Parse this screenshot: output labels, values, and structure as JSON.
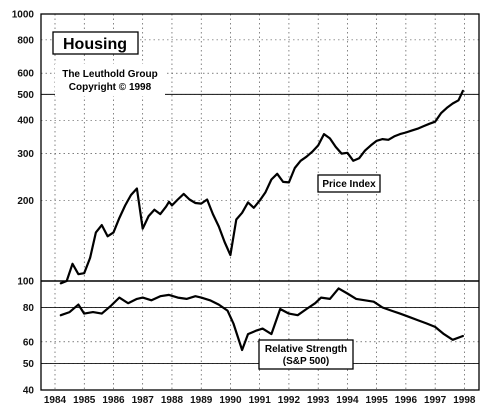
{
  "chart_data": {
    "type": "line",
    "title": "Housing",
    "credit": [
      "The Leuthold Group",
      "Copyright © 1998"
    ],
    "x_ticks": [
      "1984",
      "1985",
      "1986",
      "1987",
      "1988",
      "1989",
      "1990",
      "1991",
      "1992",
      "1993",
      "1994",
      "1995",
      "1996",
      "1997",
      "1998"
    ],
    "grid": true,
    "panels": [
      {
        "name": "price",
        "scale": "log",
        "ylim": [
          100,
          1000
        ],
        "y_ticks": [
          100,
          200,
          300,
          400,
          500,
          600,
          800,
          1000
        ],
        "reference_lines": [
          500
        ],
        "label": "Price Index",
        "series": [
          {
            "x": [
              1984.2,
              1984.4,
              1984.6,
              1984.8,
              1985.0,
              1985.2,
              1985.4,
              1985.6,
              1985.8,
              1986.0,
              1986.2,
              1986.4,
              1986.6,
              1986.8,
              1987.0,
              1987.2,
              1987.4,
              1987.6,
              1987.8,
              1987.9,
              1988.0,
              1988.2,
              1988.4,
              1988.6,
              1988.8,
              1989.0,
              1989.2,
              1989.4,
              1989.6,
              1989.8,
              1990.0,
              1990.2,
              1990.4,
              1990.6,
              1990.8,
              1991.0,
              1991.2,
              1991.4,
              1991.6,
              1991.8,
              1992.0,
              1992.2,
              1992.4,
              1992.6,
              1992.8,
              1993.0,
              1993.2,
              1993.4,
              1993.6,
              1993.8,
              1994.0,
              1994.2,
              1994.4,
              1994.6,
              1994.8,
              1995.0,
              1995.2,
              1995.4,
              1995.6,
              1995.8,
              1996.0,
              1996.2,
              1996.4,
              1996.6,
              1996.8,
              1997.0,
              1997.2,
              1997.4,
              1997.6,
              1997.8,
              1997.95
            ],
            "y": [
              98,
              100,
              116,
              106,
              107,
              122,
              152,
              162,
              147,
              152,
              172,
              192,
              210,
              222,
              157,
              175,
              185,
              178,
              190,
              198,
              192,
              202,
              212,
              202,
              196,
              195,
              202,
              178,
              160,
              140,
              125,
              170,
              180,
              197,
              188,
              200,
              215,
              240,
              252,
              235,
              234,
              265,
              282,
              292,
              305,
              322,
              355,
              342,
              318,
              300,
              302,
              282,
              288,
              308,
              322,
              335,
              340,
              338,
              348,
              355,
              360,
              366,
              372,
              380,
              388,
              395,
              425,
              445,
              462,
              475,
              515
            ]
          }
        ]
      },
      {
        "name": "relative",
        "scale": "log",
        "ylim": [
          40,
          100
        ],
        "y_ticks": [
          40,
          50,
          60,
          80,
          100
        ],
        "reference_lines": [
          50,
          80
        ],
        "label": [
          "Relative Strength",
          "(S&P 500)"
        ],
        "series": [
          {
            "x": [
              1984.2,
              1984.5,
              1984.8,
              1985.0,
              1985.3,
              1985.6,
              1985.9,
              1986.2,
              1986.5,
              1986.8,
              1987.0,
              1987.3,
              1987.6,
              1987.9,
              1988.2,
              1988.5,
              1988.8,
              1989.0,
              1989.3,
              1989.6,
              1989.9,
              1990.1,
              1990.4,
              1990.6,
              1990.9,
              1991.1,
              1991.4,
              1991.7,
              1992.0,
              1992.3,
              1992.6,
              1992.9,
              1993.1,
              1993.4,
              1993.7,
              1994.0,
              1994.3,
              1994.6,
              1994.9,
              1995.2,
              1995.5,
              1995.8,
              1996.1,
              1996.4,
              1996.7,
              1997.0,
              1997.3,
              1997.6,
              1997.95
            ],
            "y": [
              75,
              77,
              82,
              76,
              77,
              76,
              81,
              87,
              83,
              86,
              87,
              85,
              88,
              89,
              87,
              86,
              88,
              87,
              85,
              82,
              78,
              70,
              56,
              64,
              66,
              67,
              64,
              79,
              76,
              75,
              79,
              83,
              87,
              86,
              94,
              90,
              86,
              85,
              84,
              80,
              78,
              76,
              74,
              72,
              70,
              68,
              64,
              61,
              63
            ]
          }
        ]
      }
    ]
  }
}
